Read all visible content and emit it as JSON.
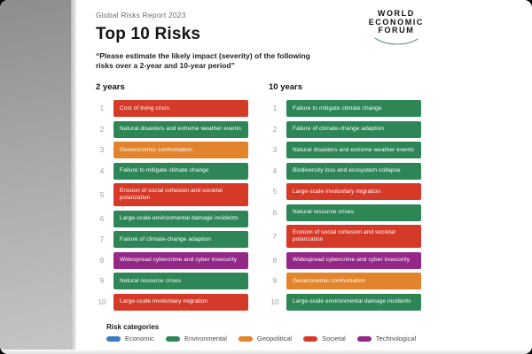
{
  "header": {
    "report_label": "Global Risks Report 2023",
    "title": "Top 10 Risks",
    "subtitle": "“Please estimate the likely impact (severity) of the following risks over a 2-year and 10-year period”"
  },
  "logo": {
    "line1": "WORLD",
    "line2": "ECONOMIC",
    "line3": "FORUM"
  },
  "colors": {
    "economic": "#3E7EC0",
    "environmental": "#2E8657",
    "geopolitical": "#E2842C",
    "societal": "#D53A28",
    "technological": "#942787"
  },
  "legend": {
    "title": "Risk categories",
    "items": [
      {
        "label": "Economic",
        "category": "economic"
      },
      {
        "label": "Environmental",
        "category": "environmental"
      },
      {
        "label": "Geopolitical",
        "category": "geopolitical"
      },
      {
        "label": "Societal",
        "category": "societal"
      },
      {
        "label": "Technological",
        "category": "technological"
      }
    ]
  },
  "chart_data": {
    "type": "table",
    "title": "Top 10 Risks",
    "subtitle": "“Please estimate the likely impact (severity) of the following risks over a 2-year and 10-year period”",
    "series": [
      {
        "name": "2 years",
        "ranking": [
          {
            "rank": "1",
            "risk": "Cost of living crisis",
            "category": "societal"
          },
          {
            "rank": "2",
            "risk": "Natural disasters and extreme weather events",
            "category": "environmental"
          },
          {
            "rank": "3",
            "risk": "Geoeconomic confrontation",
            "category": "geopolitical"
          },
          {
            "rank": "4",
            "risk": "Failure to mitigate climate change",
            "category": "environmental"
          },
          {
            "rank": "5",
            "risk": "Erosion of social cohesion and societal polarization",
            "category": "societal"
          },
          {
            "rank": "6",
            "risk": "Large-scale environmental damage incidents",
            "category": "environmental"
          },
          {
            "rank": "7",
            "risk": "Failure of climate-change adaption",
            "category": "environmental"
          },
          {
            "rank": "8",
            "risk": "Widespread cybercrime and cyber insecurity",
            "category": "technological"
          },
          {
            "rank": "9",
            "risk": "Natural resource crises",
            "category": "environmental"
          },
          {
            "rank": "10",
            "risk": "Large-scale involuntary migration",
            "category": "societal"
          }
        ]
      },
      {
        "name": "10 years",
        "ranking": [
          {
            "rank": "1",
            "risk": "Failure to mitigate climate change",
            "category": "environmental"
          },
          {
            "rank": "2",
            "risk": "Failure of climate-change adaption",
            "category": "environmental"
          },
          {
            "rank": "3",
            "risk": "Natural disasters and extreme weather events",
            "category": "environmental"
          },
          {
            "rank": "4",
            "risk": "Biodiversity loss and ecosystem collapse",
            "category": "environmental"
          },
          {
            "rank": "5",
            "risk": "Large-scale involuntary migration",
            "category": "societal"
          },
          {
            "rank": "6",
            "risk": "Natural resource crises",
            "category": "environmental"
          },
          {
            "rank": "7",
            "risk": "Erosion of social cohesion and societal polarization",
            "category": "societal"
          },
          {
            "rank": "8",
            "risk": "Widespread cybercrime and cyber insecurity",
            "category": "technological"
          },
          {
            "rank": "9",
            "risk": "Geoeconomic confrontation",
            "category": "geopolitical"
          },
          {
            "rank": "10",
            "risk": "Large-scale environmental damage incidents",
            "category": "environmental"
          }
        ]
      }
    ],
    "legend_categories": [
      "Economic",
      "Environmental",
      "Geopolitical",
      "Societal",
      "Technological"
    ]
  }
}
